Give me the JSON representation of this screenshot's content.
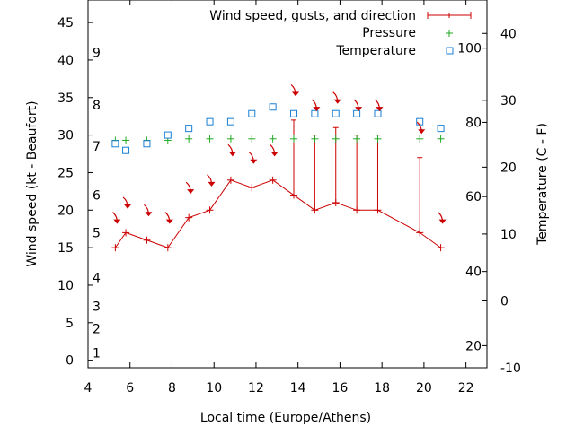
{
  "chart_data": {
    "type": "line",
    "title": "",
    "xlabel": "Local time (Europe/Athens)",
    "ylabel": "Wind speed (kt - Beaufort)",
    "y2label": "Temperature (C - F)",
    "xlim": [
      4,
      23
    ],
    "ylim": [
      -1,
      48
    ],
    "y2lim": [
      -10,
      45
    ],
    "xticks": [
      "4",
      "6",
      "8",
      "10",
      "12",
      "14",
      "16",
      "18",
      "20",
      "22"
    ],
    "yticks": [
      "0",
      "5",
      "10",
      "15",
      "20",
      "25",
      "30",
      "35",
      "40",
      "45"
    ],
    "y2ticks_c": [
      "-10",
      "0",
      "10",
      "20",
      "30",
      "40"
    ],
    "y2ticks_f": [
      {
        "label": "20",
        "c": -6.7
      },
      {
        "label": "40",
        "c": 4.4
      },
      {
        "label": "60",
        "c": 15.6
      },
      {
        "label": "80",
        "c": 26.7
      },
      {
        "label": "100",
        "c": 37.8
      }
    ],
    "beaufort_scale": [
      {
        "label": "1",
        "kt": 1
      },
      {
        "label": "2",
        "kt": 4.2
      },
      {
        "label": "3",
        "kt": 7.2
      },
      {
        "label": "4",
        "kt": 11
      },
      {
        "label": "5",
        "kt": 17
      },
      {
        "label": "6",
        "kt": 22
      },
      {
        "label": "7",
        "kt": 28.5
      },
      {
        "label": "8",
        "kt": 34
      },
      {
        "label": "9",
        "kt": 41
      }
    ],
    "legend": {
      "placement": "top-right",
      "entries": [
        "Wind speed, gusts, and direction",
        "Pressure",
        "Temperature"
      ]
    },
    "colors": {
      "wind": "#cc0000",
      "pressure": "#22aa22",
      "temperature": "#1a7fd4"
    },
    "series": [
      {
        "name": "Wind speed, gusts, and direction",
        "x": [
          5.3,
          5.8,
          6.8,
          7.8,
          8.8,
          9.8,
          10.8,
          11.8,
          12.8,
          13.8,
          14.8,
          15.8,
          16.8,
          17.8,
          19.8,
          20.8
        ],
        "values": [
          15,
          17,
          16,
          15,
          19,
          20,
          24,
          23,
          24,
          22,
          20,
          21,
          20,
          20,
          17,
          15
        ],
        "gusts": [
          null,
          null,
          null,
          null,
          null,
          null,
          null,
          null,
          null,
          32,
          30,
          31,
          30,
          30,
          27,
          null
        ]
      },
      {
        "name": "Pressure",
        "x": [
          5.3,
          5.8,
          6.8,
          7.8,
          8.8,
          9.8,
          10.8,
          11.8,
          12.8,
          13.8,
          14.8,
          15.8,
          16.8,
          17.8,
          19.8,
          20.8
        ],
        "values": [
          29.3,
          29.3,
          29.3,
          29.3,
          29.5,
          29.5,
          29.5,
          29.5,
          29.5,
          29.5,
          29.5,
          29.5,
          29.5,
          29.5,
          29.5,
          29.5
        ]
      },
      {
        "name": "Temperature",
        "x": [
          5.3,
          5.8,
          6.8,
          7.8,
          8.8,
          9.8,
          10.8,
          11.8,
          12.8,
          13.8,
          14.8,
          15.8,
          16.8,
          17.8,
          19.8,
          20.8
        ],
        "values": [
          23.5,
          22.5,
          23.5,
          24.8,
          25.8,
          26.8,
          26.8,
          28,
          29,
          28,
          28,
          28,
          28,
          28,
          26.8,
          25.8
        ]
      }
    ],
    "wind_arrows": {
      "x": [
        5.3,
        5.8,
        6.8,
        7.8,
        8.8,
        9.8,
        10.8,
        11.8,
        12.8,
        13.8,
        14.8,
        15.8,
        16.8,
        17.8,
        19.8,
        20.8
      ],
      "kt": [
        19,
        21,
        20,
        19,
        23,
        24,
        28,
        27,
        28,
        36,
        34,
        35,
        34,
        34,
        31,
        19
      ]
    }
  }
}
